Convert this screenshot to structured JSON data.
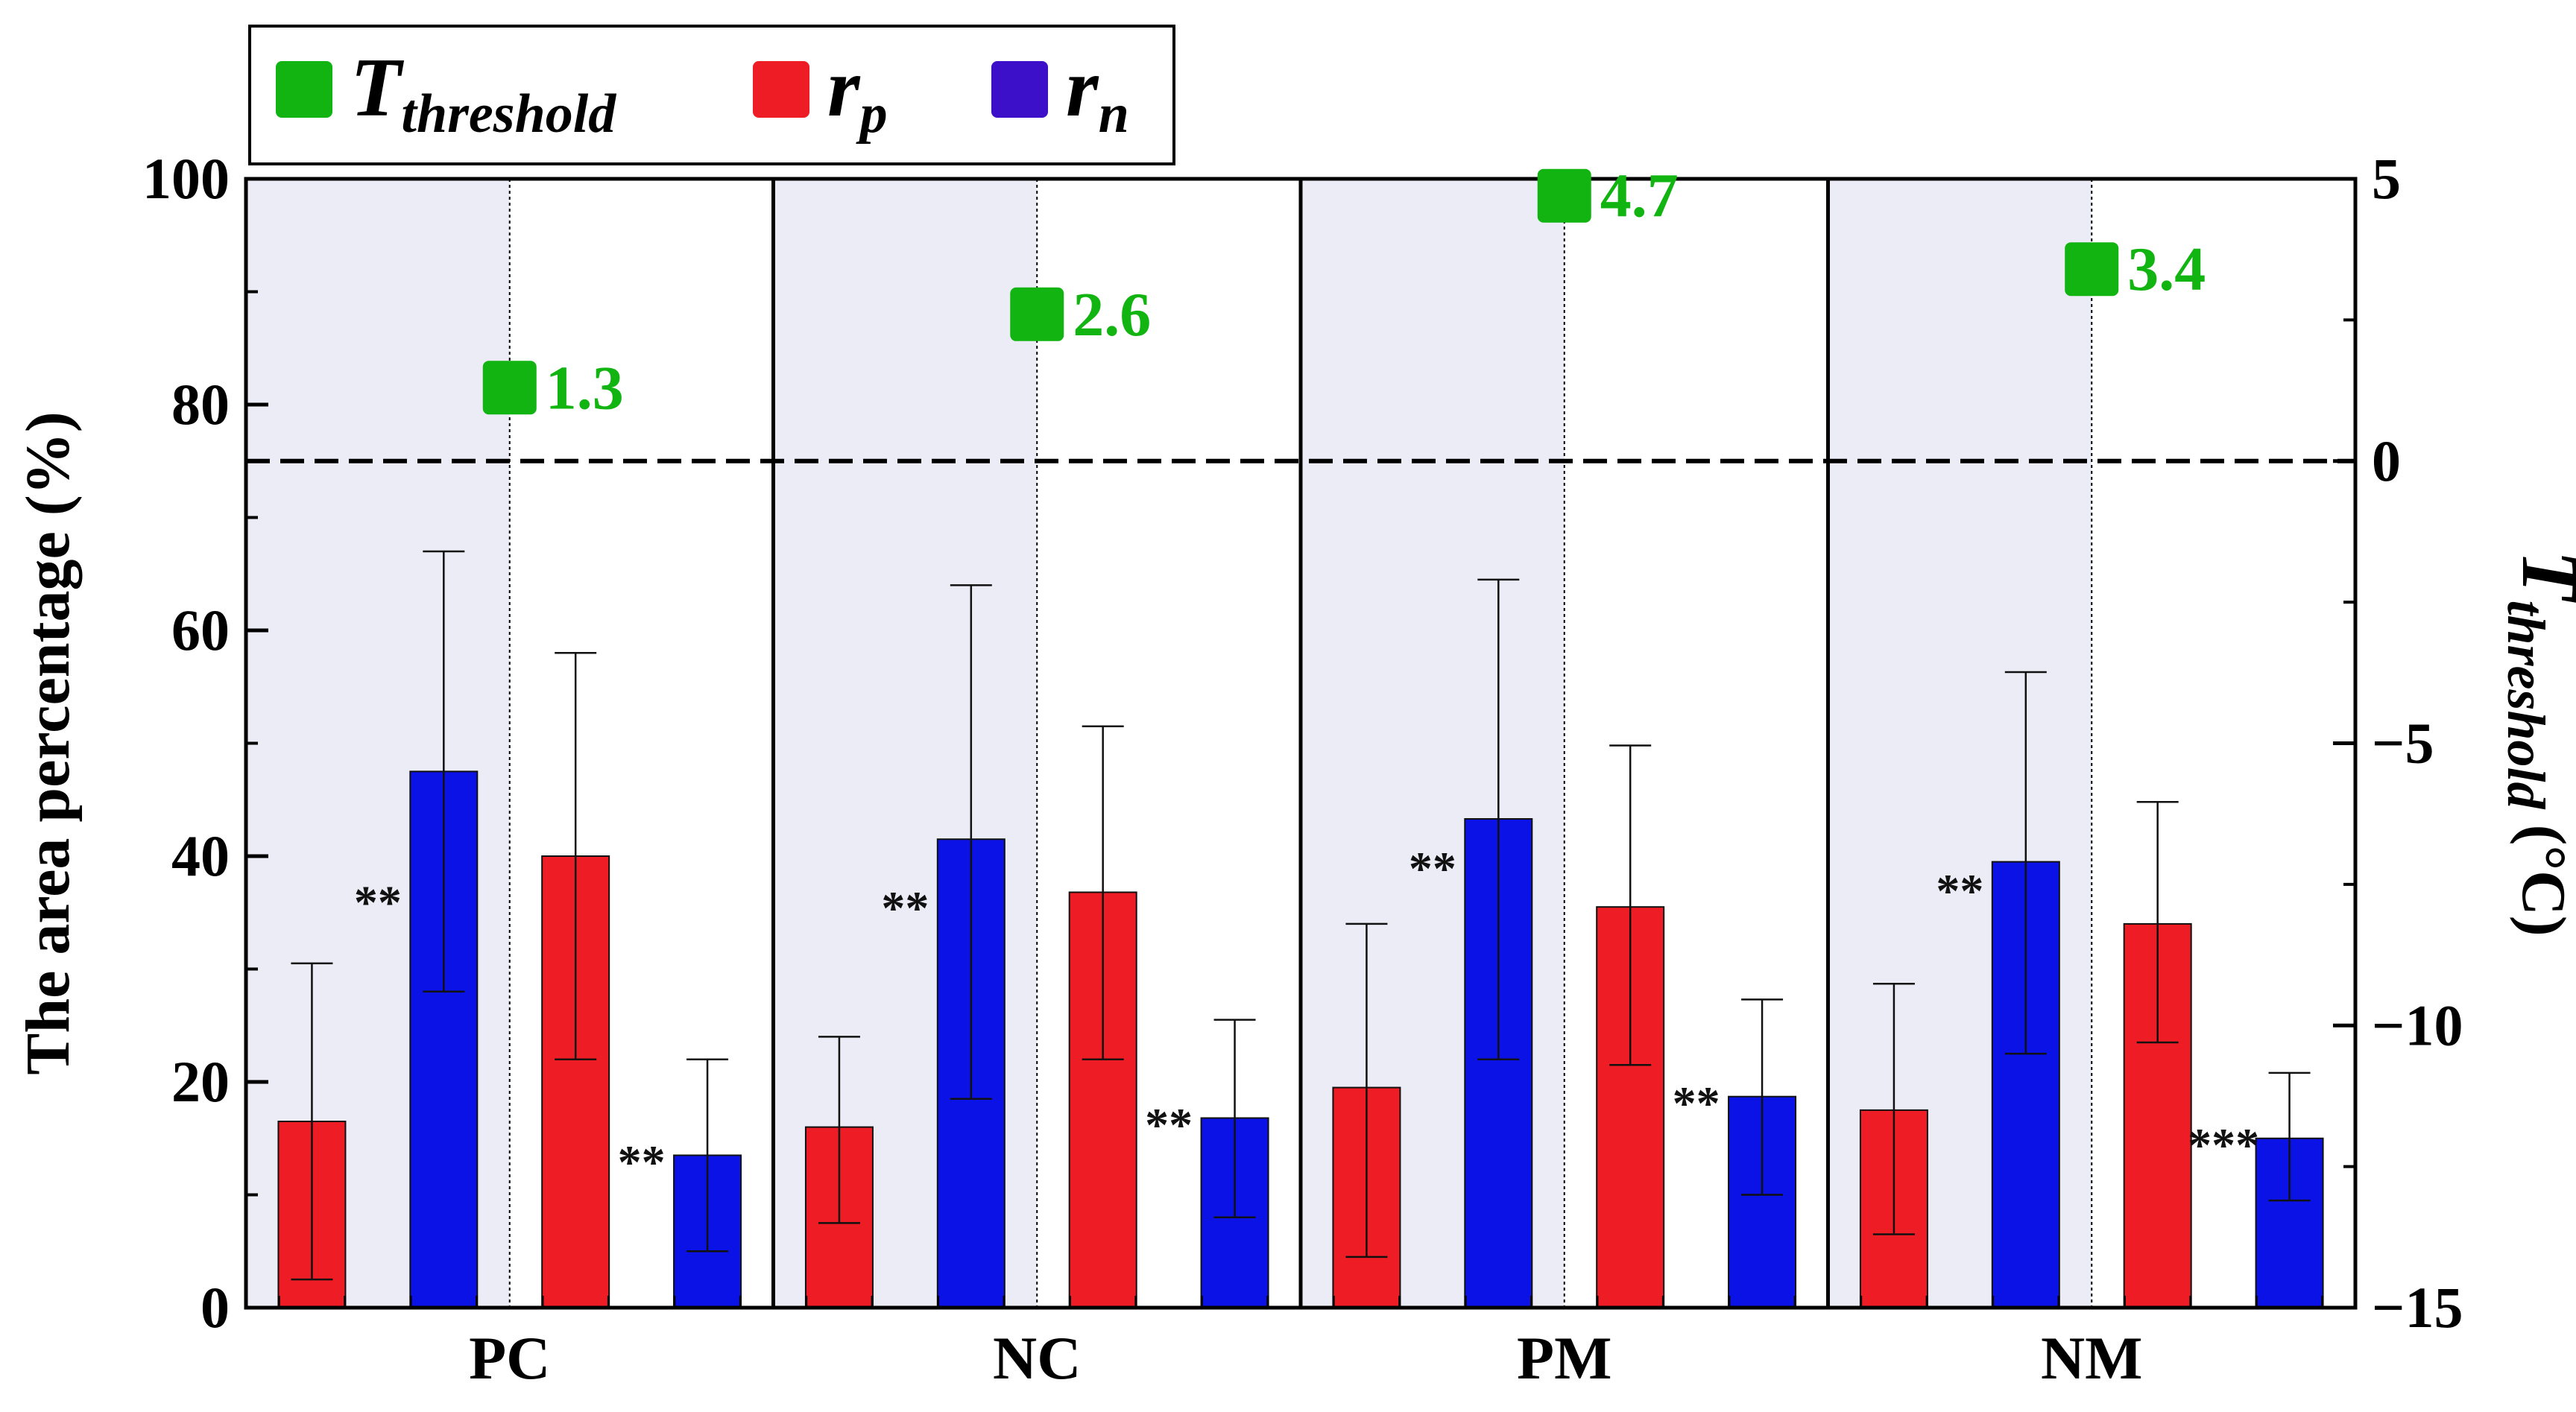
{
  "chart_data": {
    "type": "bar",
    "groups": [
      "PC",
      "NC",
      "PM",
      "NM"
    ],
    "bar_order": [
      "rp",
      "rn",
      "rp",
      "rn"
    ],
    "series": [
      {
        "name": "PC",
        "values": [
          16.5,
          47.5,
          40.0,
          13.5
        ],
        "err_low": [
          2.5,
          28.0,
          22.0,
          5.0
        ],
        "err_high": [
          30.5,
          67.0,
          58.0,
          22.0
        ],
        "sig": [
          "**",
          "**"
        ]
      },
      {
        "name": "NC",
        "values": [
          16.0,
          41.5,
          36.8,
          16.8
        ],
        "err_low": [
          7.5,
          18.5,
          22.0,
          8.0
        ],
        "err_high": [
          24.0,
          64.0,
          51.5,
          25.5
        ],
        "sig": [
          "**",
          "**"
        ]
      },
      {
        "name": "PM",
        "values": [
          19.5,
          43.3,
          35.5,
          18.7
        ],
        "err_low": [
          4.5,
          22.0,
          21.5,
          10.0
        ],
        "err_high": [
          34.0,
          64.5,
          49.8,
          27.3
        ],
        "sig": [
          "**",
          "**"
        ]
      },
      {
        "name": "NM",
        "values": [
          17.5,
          39.5,
          34.0,
          15.0
        ],
        "err_low": [
          6.5,
          22.5,
          23.5,
          9.5
        ],
        "err_high": [
          28.7,
          56.3,
          44.8,
          20.8
        ],
        "sig": [
          "**",
          "***"
        ]
      }
    ],
    "threshold_series": {
      "name": "T_threshold",
      "values": [
        1.3,
        2.6,
        4.7,
        3.4
      ],
      "labels": [
        "1.3",
        "2.6",
        "4.7",
        "3.4"
      ]
    },
    "ylabel": "The area percentage (%)",
    "ylim": [
      0,
      100
    ],
    "yticks": [
      "0",
      "20",
      "40",
      "60",
      "80",
      "100"
    ],
    "y2label_main": "T",
    "y2label_sub": "threshold",
    "y2label_unit": " (°C)",
    "y2lim": [
      -15,
      5
    ],
    "y2ticks": [
      "5",
      "0",
      "−5",
      "−10",
      "−15"
    ],
    "y2tick_values": [
      5,
      0,
      -5,
      -10,
      -15
    ],
    "legend": [
      {
        "main": "T",
        "sub": "threshold",
        "color": "#11b411"
      },
      {
        "main": "r",
        "sub": "p",
        "color": "#ee1c24"
      },
      {
        "main": "r",
        "sub": "n",
        "color": "#3b10c8"
      }
    ],
    "colors": {
      "rp": "#ee1c24",
      "rn": "#0b12e6",
      "threshold": "#11b411",
      "shade": "#ececf6"
    }
  }
}
